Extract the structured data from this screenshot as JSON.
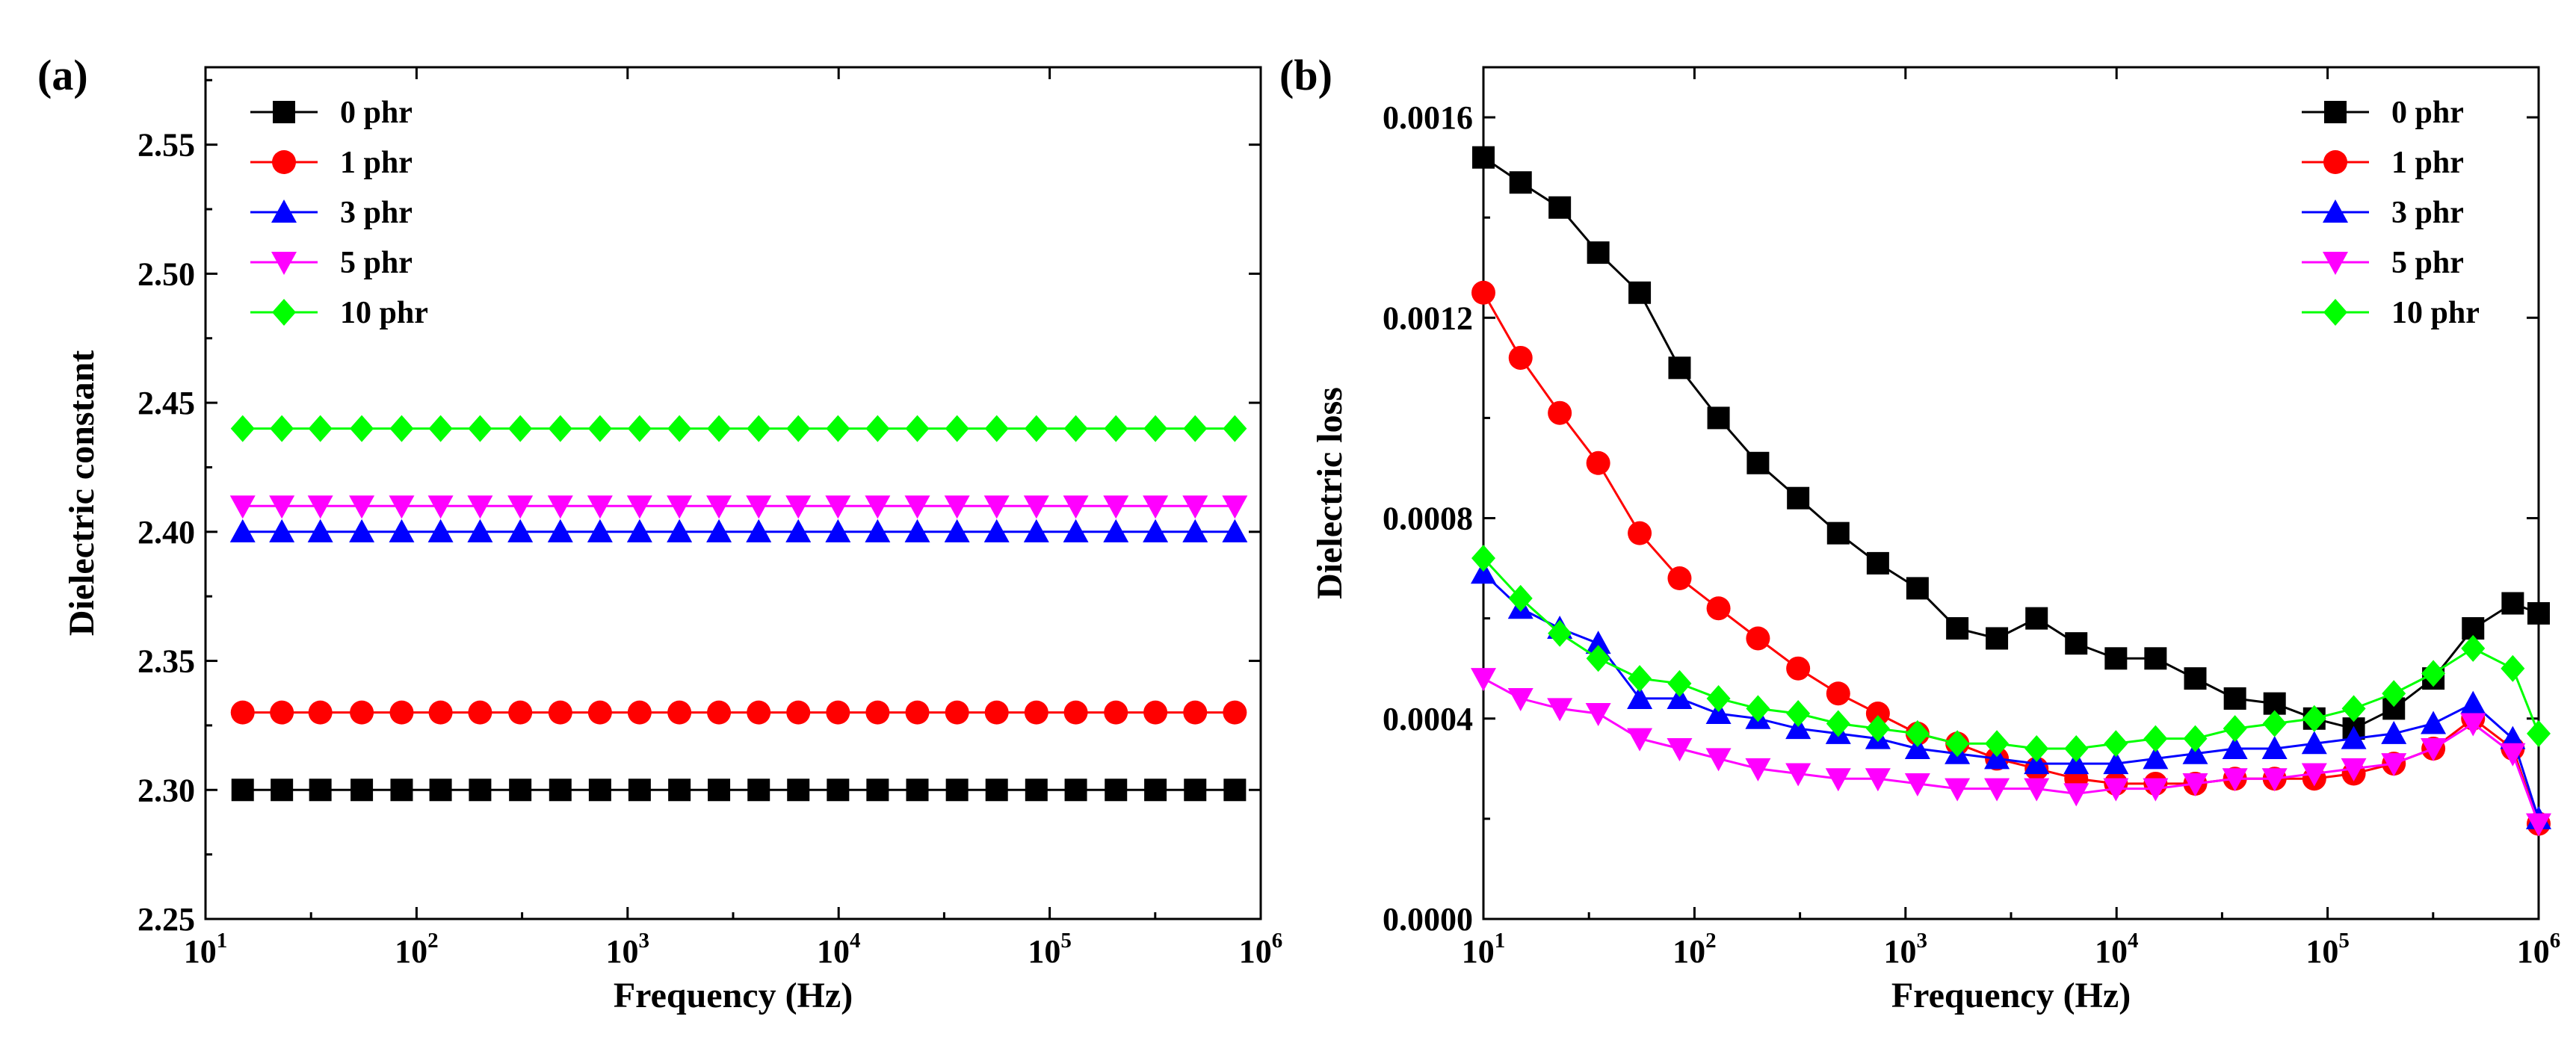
{
  "chart_data": [
    {
      "type": "line",
      "panel_label": "(a)",
      "xlabel": "Frequency (Hz)",
      "ylabel": "Dielectric constant",
      "xscale": "log",
      "xlim": [
        10,
        1000000
      ],
      "ylim": [
        2.25,
        2.58
      ],
      "x_ticks": [
        {
          "base": "10",
          "exp": "1"
        },
        {
          "base": "10",
          "exp": "2"
        },
        {
          "base": "10",
          "exp": "3"
        },
        {
          "base": "10",
          "exp": "4"
        },
        {
          "base": "10",
          "exp": "5"
        },
        {
          "base": "10",
          "exp": "6"
        }
      ],
      "y_ticks": [
        "2.25",
        "2.30",
        "2.35",
        "2.40",
        "2.45",
        "2.50",
        "2.55"
      ],
      "y_tick_values": [
        2.25,
        2.3,
        2.35,
        2.4,
        2.45,
        2.5,
        2.55
      ],
      "legend_position": "top-left",
      "x": [
        15,
        23,
        35,
        55,
        85,
        130,
        200,
        310,
        480,
        740,
        1140,
        1760,
        2710,
        4180,
        6440,
        9930,
        15300,
        23600,
        36400,
        56100,
        86500,
        133000,
        206000,
        317000,
        489000,
        754000
      ],
      "series": [
        {
          "name": "0 phr",
          "color": "#000000",
          "marker": "square",
          "values": [
            2.3,
            2.3,
            2.3,
            2.3,
            2.3,
            2.3,
            2.3,
            2.3,
            2.3,
            2.3,
            2.3,
            2.3,
            2.3,
            2.3,
            2.3,
            2.3,
            2.3,
            2.3,
            2.3,
            2.3,
            2.3,
            2.3,
            2.3,
            2.3,
            2.3,
            2.3
          ]
        },
        {
          "name": "1 phr",
          "color": "#ff0000",
          "marker": "circle",
          "values": [
            2.33,
            2.33,
            2.33,
            2.33,
            2.33,
            2.33,
            2.33,
            2.33,
            2.33,
            2.33,
            2.33,
            2.33,
            2.33,
            2.33,
            2.33,
            2.33,
            2.33,
            2.33,
            2.33,
            2.33,
            2.33,
            2.33,
            2.33,
            2.33,
            2.33,
            2.33
          ]
        },
        {
          "name": "3 phr",
          "color": "#0000ff",
          "marker": "triangle-up",
          "values": [
            2.4,
            2.4,
            2.4,
            2.4,
            2.4,
            2.4,
            2.4,
            2.4,
            2.4,
            2.4,
            2.4,
            2.4,
            2.4,
            2.4,
            2.4,
            2.4,
            2.4,
            2.4,
            2.4,
            2.4,
            2.4,
            2.4,
            2.4,
            2.4,
            2.4,
            2.4
          ]
        },
        {
          "name": "5 phr",
          "color": "#ff00ff",
          "marker": "triangle-down",
          "values": [
            2.41,
            2.41,
            2.41,
            2.41,
            2.41,
            2.41,
            2.41,
            2.41,
            2.41,
            2.41,
            2.41,
            2.41,
            2.41,
            2.41,
            2.41,
            2.41,
            2.41,
            2.41,
            2.41,
            2.41,
            2.41,
            2.41,
            2.41,
            2.41,
            2.41,
            2.41
          ]
        },
        {
          "name": "10 phr",
          "color": "#00ff00",
          "marker": "diamond",
          "values": [
            2.44,
            2.44,
            2.44,
            2.44,
            2.44,
            2.44,
            2.44,
            2.44,
            2.44,
            2.44,
            2.44,
            2.44,
            2.44,
            2.44,
            2.44,
            2.44,
            2.44,
            2.44,
            2.44,
            2.44,
            2.44,
            2.44,
            2.44,
            2.44,
            2.44,
            2.44
          ]
        }
      ]
    },
    {
      "type": "line",
      "panel_label": "(b)",
      "xlabel": "Frequency (Hz)",
      "ylabel": "Dielectric loss",
      "xscale": "log",
      "xlim": [
        10,
        1000000
      ],
      "ylim": [
        0.0,
        0.0017
      ],
      "x_ticks": [
        {
          "base": "10",
          "exp": "1"
        },
        {
          "base": "10",
          "exp": "2"
        },
        {
          "base": "10",
          "exp": "3"
        },
        {
          "base": "10",
          "exp": "4"
        },
        {
          "base": "10",
          "exp": "5"
        },
        {
          "base": "10",
          "exp": "6"
        }
      ],
      "y_ticks": [
        "0.0000",
        "0.0004",
        "0.0008",
        "0.0012",
        "0.0016"
      ],
      "y_tick_values": [
        0.0,
        0.0004,
        0.0008,
        0.0012,
        0.0016
      ],
      "legend_position": "top-right",
      "x": [
        10,
        15,
        23,
        35,
        55,
        85,
        130,
        200,
        310,
        480,
        740,
        1140,
        1760,
        2710,
        4180,
        6440,
        9930,
        15300,
        23600,
        36400,
        56100,
        86500,
        133000,
        206000,
        317000,
        489000,
        754000,
        1000000
      ],
      "series": [
        {
          "name": "0 phr",
          "color": "#000000",
          "marker": "square",
          "values": [
            0.00152,
            0.00147,
            0.00142,
            0.00133,
            0.00125,
            0.0011,
            0.001,
            0.00091,
            0.00084,
            0.00077,
            0.00071,
            0.00066,
            0.00058,
            0.00056,
            0.0006,
            0.00055,
            0.00052,
            0.00052,
            0.00048,
            0.00044,
            0.00043,
            0.0004,
            0.00038,
            0.00042,
            0.00048,
            0.00058,
            0.00063,
            0.00061
          ]
        },
        {
          "name": "1 phr",
          "color": "#ff0000",
          "marker": "circle",
          "values": [
            0.00125,
            0.00112,
            0.00101,
            0.00091,
            0.00077,
            0.00068,
            0.00062,
            0.00056,
            0.0005,
            0.00045,
            0.00041,
            0.00037,
            0.00035,
            0.00032,
            0.0003,
            0.00028,
            0.00027,
            0.00027,
            0.00027,
            0.00028,
            0.00028,
            0.00028,
            0.00029,
            0.00031,
            0.00034,
            0.0004,
            0.00034,
            0.00019
          ]
        },
        {
          "name": "3 phr",
          "color": "#0000ff",
          "marker": "triangle-up",
          "values": [
            0.00069,
            0.00062,
            0.00058,
            0.00055,
            0.00044,
            0.00044,
            0.00041,
            0.0004,
            0.00038,
            0.00037,
            0.00036,
            0.00034,
            0.00033,
            0.00032,
            0.00031,
            0.00031,
            0.00031,
            0.00032,
            0.00033,
            0.00034,
            0.00034,
            0.00035,
            0.00036,
            0.00037,
            0.00039,
            0.00043,
            0.00036,
            0.0002
          ]
        },
        {
          "name": "5 phr",
          "color": "#ff00ff",
          "marker": "triangle-down",
          "values": [
            0.00048,
            0.00044,
            0.00042,
            0.00041,
            0.00036,
            0.00034,
            0.00032,
            0.0003,
            0.00029,
            0.00028,
            0.00028,
            0.00027,
            0.00026,
            0.00026,
            0.00026,
            0.00025,
            0.00026,
            0.00026,
            0.00027,
            0.00028,
            0.00028,
            0.00029,
            0.0003,
            0.00031,
            0.00034,
            0.00039,
            0.00033,
            0.00019
          ]
        },
        {
          "name": "10 phr",
          "color": "#00ff00",
          "marker": "diamond",
          "values": [
            0.00072,
            0.00064,
            0.00057,
            0.00052,
            0.00048,
            0.00047,
            0.00044,
            0.00042,
            0.00041,
            0.00039,
            0.00038,
            0.00037,
            0.00035,
            0.00035,
            0.00034,
            0.00034,
            0.00035,
            0.00036,
            0.00036,
            0.00038,
            0.00039,
            0.0004,
            0.00042,
            0.00045,
            0.00049,
            0.00054,
            0.0005,
            0.00037
          ]
        }
      ]
    }
  ]
}
